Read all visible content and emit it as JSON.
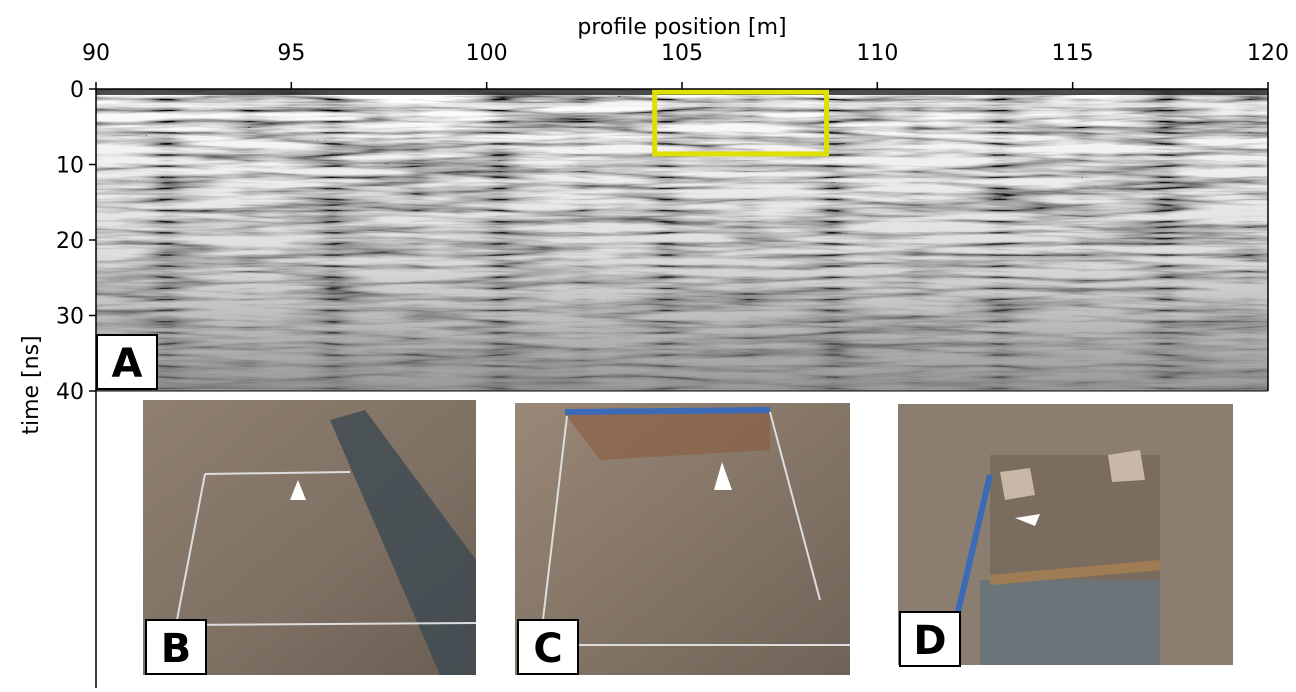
{
  "chart_data": {
    "type": "radargram",
    "xlabel": "profile position [m]",
    "ylabel": "time [ns]",
    "xlim": [
      90,
      120
    ],
    "ylim": [
      0,
      40
    ],
    "xticks": [
      90,
      95,
      100,
      105,
      110,
      115,
      120
    ],
    "yticks": [
      0,
      10,
      20,
      30,
      40
    ],
    "highlight": {
      "x": [
        104.3,
        108.7
      ],
      "y": [
        0.4,
        8.6
      ],
      "color": "#e0e000"
    }
  },
  "panels": {
    "labels": [
      "A",
      "B",
      "C",
      "D"
    ]
  }
}
